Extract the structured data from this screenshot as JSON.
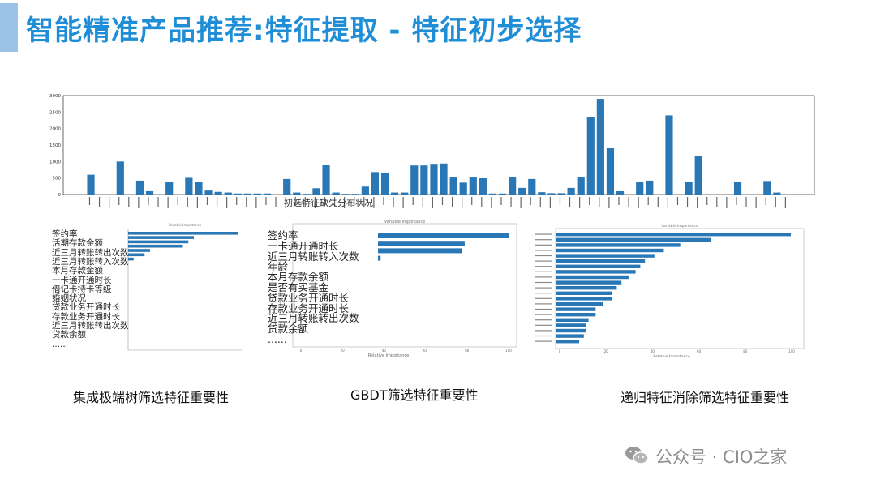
{
  "slide": {
    "title": "智能精准产品推荐:特征提取 - 特征初步选择",
    "accent_color": "#9cc3e6",
    "title_color": "#1f8ed6",
    "bar_color": "#2a77b6"
  },
  "chart_data": [
    {
      "type": "bar",
      "title": "初选特征缺失分布状况",
      "ylim": [
        0,
        3000
      ],
      "yticks": [
        "3000",
        "2500",
        "2000",
        "1500",
        "1000",
        "500",
        "0"
      ],
      "values": [
        600,
        0,
        0,
        1000,
        0,
        420,
        100,
        0,
        370,
        0,
        530,
        380,
        120,
        80,
        60,
        30,
        30,
        30,
        30,
        0,
        470,
        60,
        20,
        190,
        900,
        60,
        20,
        20,
        240,
        680,
        640,
        60,
        60,
        880,
        880,
        930,
        940,
        540,
        360,
        540,
        510,
        30,
        30,
        540,
        200,
        470,
        70,
        40,
        40,
        200,
        540,
        2360,
        2900,
        1420,
        100,
        0,
        380,
        420,
        0,
        2400,
        0,
        380,
        1180,
        0,
        0,
        0,
        380,
        0,
        0,
        410,
        60,
        0
      ]
    },
    {
      "type": "bar",
      "orientation": "horizontal",
      "title": "Variable Importance",
      "categories": [
        "签约率",
        "活期存款金额",
        "近三月转账转出次数",
        "近三月转账转入次数",
        "本月存款金额",
        "一卡通开通时长",
        "借记卡持卡等级",
        "婚姻状况",
        "贷款业务开通时长",
        "存款业务开通时长",
        "近三月转账转出次数",
        "贷款余额",
        "......"
      ],
      "values": [
        1.0,
        0.6,
        0.55,
        0.5,
        0.2,
        0.15,
        0.05,
        0,
        0,
        0,
        0,
        0,
        0
      ],
      "caption": "集成极端树筛选特征重要性"
    },
    {
      "type": "bar",
      "orientation": "horizontal",
      "title": "Variable Importance",
      "xlabel": "Relative Importance",
      "categories": [
        "签约率",
        "一卡通开通时长",
        "近三月转账转入次数",
        "年龄",
        "本月存款余额",
        "是否有买基金",
        "贷款业务开通时长",
        "存款业务开通时长",
        "近三月转账转出次数",
        "贷款余额",
        "......"
      ],
      "values": [
        100,
        66,
        64,
        2,
        0,
        0,
        0,
        0,
        0,
        0,
        0
      ],
      "xticks": [
        "0",
        "20",
        "40",
        "60",
        "80",
        "100"
      ],
      "caption": "GBDT筛选特征重要性"
    },
    {
      "type": "bar",
      "orientation": "horizontal",
      "title": "Variable Importance",
      "xlabel": "Relative Importance",
      "values": [
        100,
        66,
        53,
        46,
        42,
        38,
        36,
        34,
        31,
        28,
        26,
        24,
        24,
        20,
        17,
        17,
        14,
        13,
        13,
        12,
        10
      ],
      "xticks": [
        "0",
        "20",
        "40",
        "60",
        "80",
        "100"
      ],
      "caption": "递归特征消除筛选特征重要性"
    }
  ],
  "watermark": {
    "text": "公众号 · CIO之家",
    "icon": "wechat-icon"
  }
}
